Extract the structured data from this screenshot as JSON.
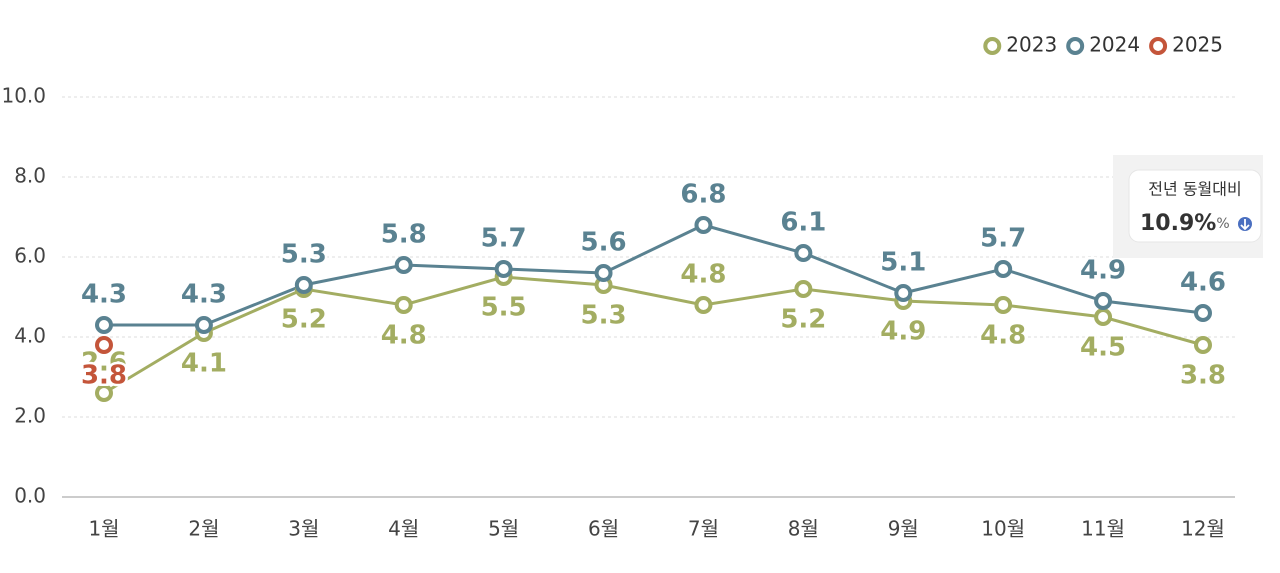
{
  "chart_data": {
    "type": "line",
    "categories": [
      "1월",
      "2월",
      "3월",
      "4월",
      "5월",
      "6월",
      "7월",
      "8월",
      "9월",
      "10월",
      "11월",
      "12월"
    ],
    "series": [
      {
        "name": "2023",
        "color": "#a3ad62",
        "values": [
          2.6,
          4.1,
          5.2,
          4.8,
          5.5,
          5.3,
          4.8,
          5.2,
          4.9,
          4.8,
          4.5,
          3.8
        ]
      },
      {
        "name": "2024",
        "color": "#5a8291",
        "values": [
          4.3,
          4.3,
          5.3,
          5.8,
          5.7,
          5.6,
          6.8,
          6.1,
          5.1,
          5.7,
          4.9,
          4.6
        ]
      },
      {
        "name": "2025",
        "color": "#c4553a",
        "values": [
          3.8,
          null,
          null,
          null,
          null,
          null,
          null,
          null,
          null,
          null,
          null,
          null
        ]
      }
    ],
    "ylim": [
      0,
      10
    ],
    "yticks": [
      {
        "value": 0,
        "label": "0.0"
      },
      {
        "value": 2,
        "label": "2.0"
      },
      {
        "value": 4,
        "label": "4.0"
      },
      {
        "value": 6,
        "label": "6.0"
      },
      {
        "value": 8,
        "label": "8.0"
      },
      {
        "value": 10,
        "label": "10.0"
      }
    ],
    "grid": true,
    "legend": "top-right",
    "annotation": {
      "title": "전년 동월대비",
      "value": "10.9%",
      "unit": "%"
    }
  }
}
